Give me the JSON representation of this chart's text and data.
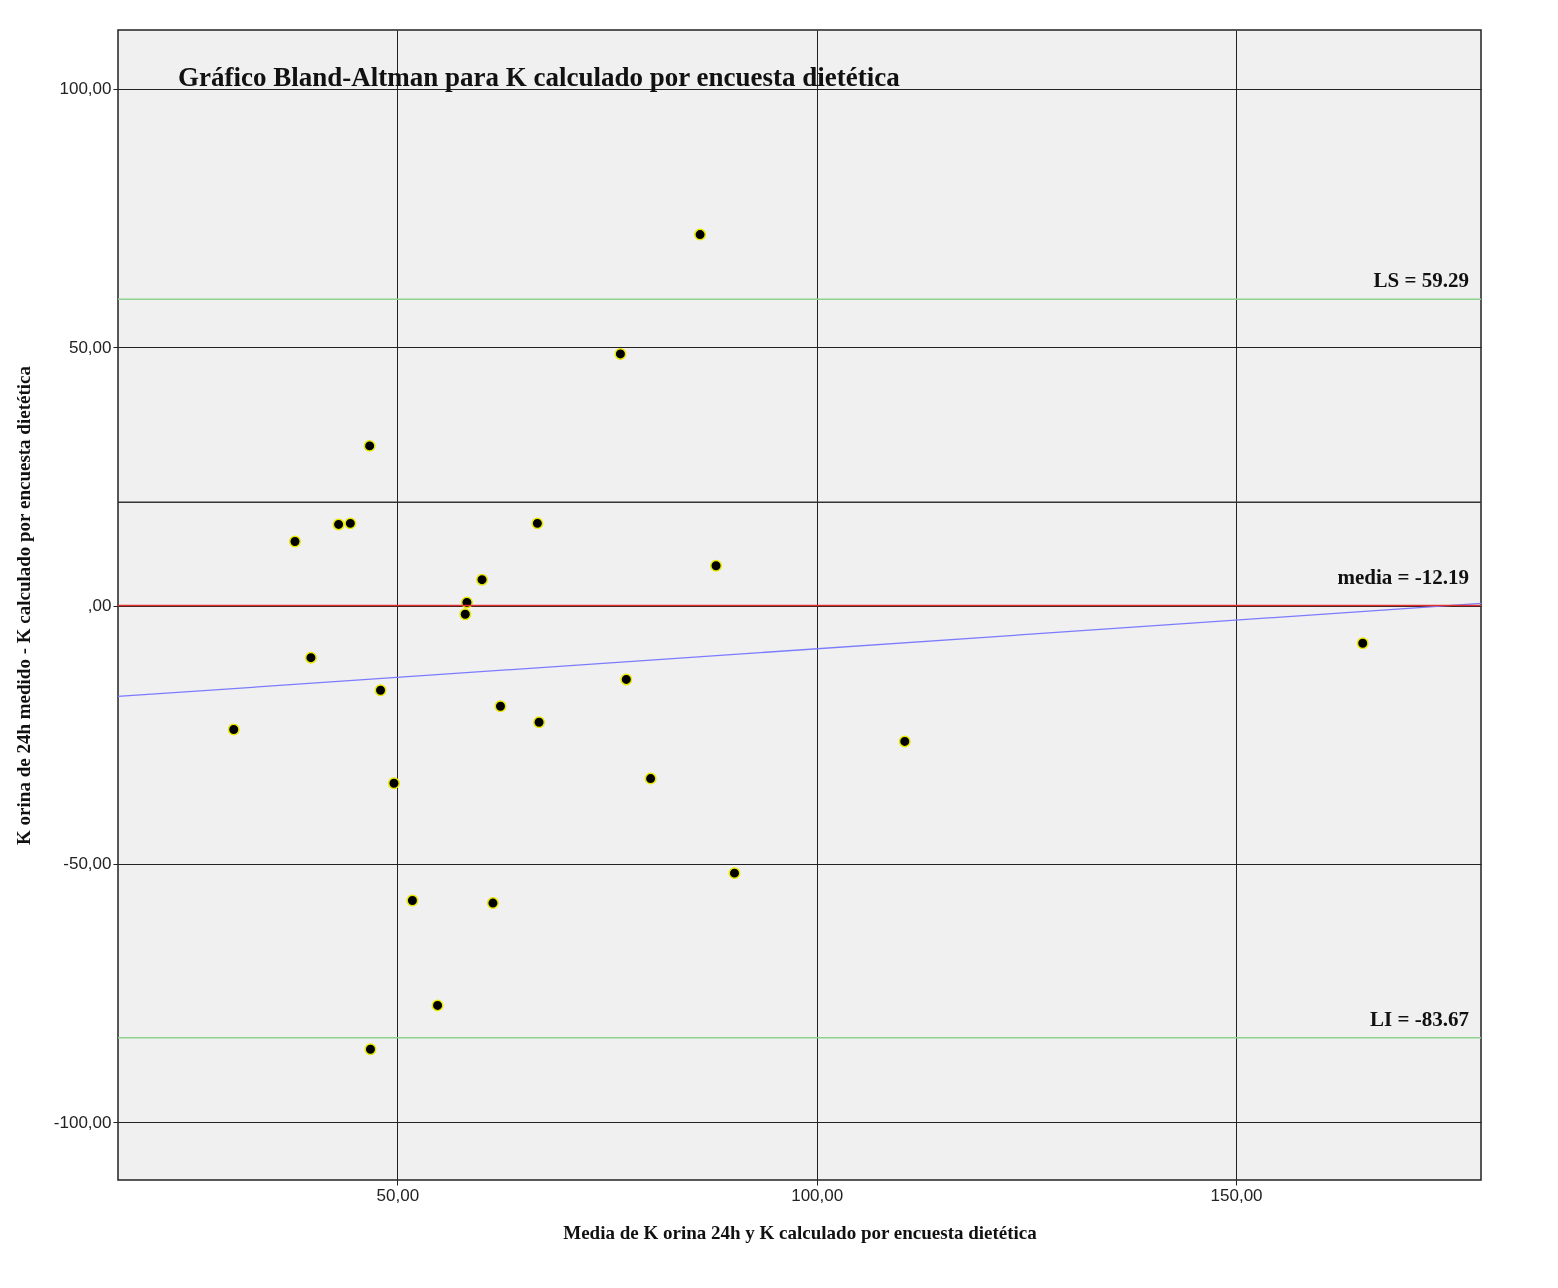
{
  "chart_data": {
    "type": "scatter",
    "title": "Gráfico Bland-Altman para K calculado por encuesta dietética",
    "xlabel": "Media de K orina 24h y K calculado por encuesta dietética",
    "ylabel": "K orina de 24h medido - K calculado por encuesta dietética",
    "xlim": [
      16.7,
      179.2
    ],
    "ylim": [
      -111.2,
      111.4
    ],
    "xticks": [
      {
        "value": 50,
        "label": "50,00"
      },
      {
        "value": 100,
        "label": "100,00"
      },
      {
        "value": 150,
        "label": "150,00"
      }
    ],
    "yticks": [
      {
        "value": -100,
        "label": "-100,00"
      },
      {
        "value": -50,
        "label": "-50,00"
      },
      {
        "value": 0,
        "label": ",00"
      },
      {
        "value": 50,
        "label": "50,00"
      },
      {
        "value": 100,
        "label": "100,00"
      }
    ],
    "grid": true,
    "annotations": [
      "media = -12.19"
    ],
    "series": [
      {
        "marker": "circle",
        "color": "#000000",
        "x": [
          30.5,
          37.8,
          39.7,
          43.0,
          44.4,
          46.7,
          48.0,
          49.6,
          46.8,
          51.8,
          54.8,
          58.3,
          58.1,
          60.1,
          62.3,
          61.4,
          66.7,
          66.9,
          76.6,
          77.3,
          80.2,
          86.1,
          88.0,
          90.2,
          110.5,
          165.1
        ],
        "values": [
          -24.0,
          12.4,
          -10.1,
          15.7,
          15.9,
          30.9,
          -16.4,
          -34.4,
          -85.9,
          -57.1,
          -77.4,
          0.6,
          -1.7,
          5.0,
          -19.5,
          -57.6,
          15.9,
          -22.6,
          48.7,
          -14.3,
          -33.5,
          71.8,
          7.7,
          -51.8,
          -26.3,
          -7.3
        ]
      },
      {
        "type": "line",
        "color": "#7b7bff",
        "x": [
          16.7,
          179.2
        ],
        "values": [
          -17.6,
          0.4
        ]
      }
    ],
    "ref_lines": [
      {
        "axis": "y",
        "value": 59.29,
        "label": "LS = 59.29",
        "color": "#8fd18f"
      },
      {
        "axis": "y",
        "value": 0,
        "label": null,
        "color": "#e03030"
      },
      {
        "axis": "y",
        "value": -83.67,
        "label": "LI = -83.67",
        "color": "#8fd18f"
      },
      {
        "axis": "y",
        "value": 20,
        "label": null,
        "color": "#333333"
      }
    ]
  }
}
